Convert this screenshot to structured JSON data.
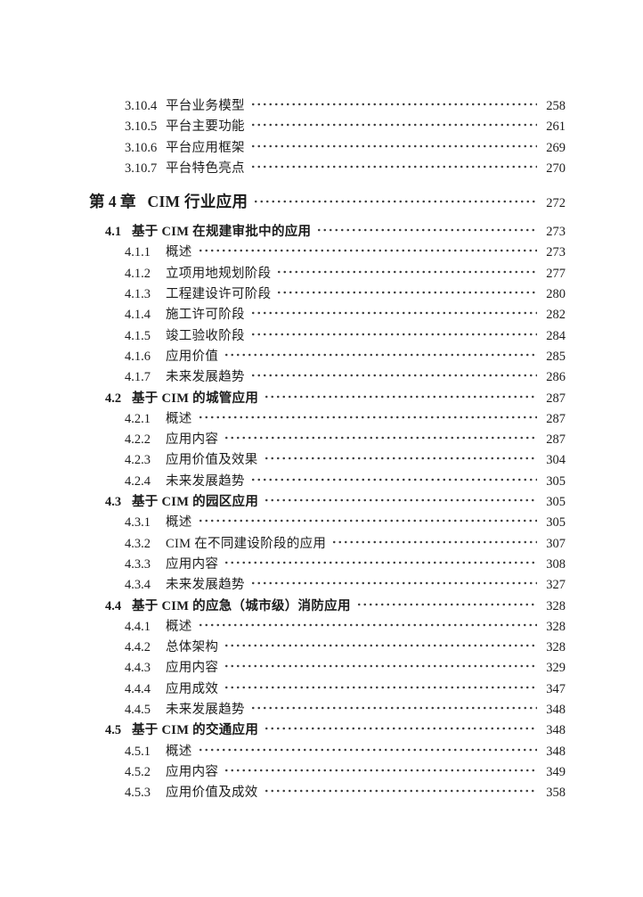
{
  "document": {
    "type": "book-table-of-contents-page",
    "language": "zh-CN"
  },
  "colors": {
    "background": "#ffffff",
    "text": "#1c1c1c",
    "dots": "#3c3c3c"
  },
  "toc": {
    "entries": [
      {
        "level": "sub",
        "number": "3.10.4",
        "title": "平台业务模型",
        "page": "258"
      },
      {
        "level": "sub",
        "number": "3.10.5",
        "title": "平台主要功能",
        "page": "261"
      },
      {
        "level": "sub",
        "number": "3.10.6",
        "title": "平台应用框架",
        "page": "269"
      },
      {
        "level": "sub",
        "number": "3.10.7",
        "title": "平台特色亮点",
        "page": "270"
      },
      {
        "level": "chapter",
        "number": "第 4 章",
        "title": "CIM 行业应用",
        "page": "272"
      },
      {
        "level": "section",
        "number": "4.1",
        "title": "基于 CIM 在规建审批中的应用",
        "page": "273"
      },
      {
        "level": "sub",
        "number": "4.1.1",
        "title": "概述",
        "page": "273"
      },
      {
        "level": "sub",
        "number": "4.1.2",
        "title": "立项用地规划阶段",
        "page": "277"
      },
      {
        "level": "sub",
        "number": "4.1.3",
        "title": "工程建设许可阶段",
        "page": "280"
      },
      {
        "level": "sub",
        "number": "4.1.4",
        "title": "施工许可阶段",
        "page": "282"
      },
      {
        "level": "sub",
        "number": "4.1.5",
        "title": "竣工验收阶段",
        "page": "284"
      },
      {
        "level": "sub",
        "number": "4.1.6",
        "title": "应用价值",
        "page": "285"
      },
      {
        "level": "sub",
        "number": "4.1.7",
        "title": "未来发展趋势",
        "page": "286"
      },
      {
        "level": "section",
        "number": "4.2",
        "title": "基于 CIM 的城管应用",
        "page": "287"
      },
      {
        "level": "sub",
        "number": "4.2.1",
        "title": "概述",
        "page": "287"
      },
      {
        "level": "sub",
        "number": "4.2.2",
        "title": "应用内容",
        "page": "287"
      },
      {
        "level": "sub",
        "number": "4.2.3",
        "title": "应用价值及效果",
        "page": "304"
      },
      {
        "level": "sub",
        "number": "4.2.4",
        "title": "未来发展趋势",
        "page": "305"
      },
      {
        "level": "section",
        "number": "4.3",
        "title": "基于 CIM 的园区应用",
        "page": "305"
      },
      {
        "level": "sub",
        "number": "4.3.1",
        "title": "概述",
        "page": "305"
      },
      {
        "level": "sub",
        "number": "4.3.2",
        "title": "CIM 在不同建设阶段的应用",
        "page": "307"
      },
      {
        "level": "sub",
        "number": "4.3.3",
        "title": "应用内容",
        "page": "308"
      },
      {
        "level": "sub",
        "number": "4.3.4",
        "title": "未来发展趋势",
        "page": "327"
      },
      {
        "level": "section",
        "number": "4.4",
        "title": "基于 CIM 的应急（城市级）消防应用",
        "page": "328"
      },
      {
        "level": "sub",
        "number": "4.4.1",
        "title": "概述",
        "page": "328"
      },
      {
        "level": "sub",
        "number": "4.4.2",
        "title": "总体架构",
        "page": "328"
      },
      {
        "level": "sub",
        "number": "4.4.3",
        "title": "应用内容",
        "page": "329"
      },
      {
        "level": "sub",
        "number": "4.4.4",
        "title": "应用成效",
        "page": "347"
      },
      {
        "level": "sub",
        "number": "4.4.5",
        "title": "未来发展趋势",
        "page": "348"
      },
      {
        "level": "section",
        "number": "4.5",
        "title": "基于 CIM 的交通应用",
        "page": "348"
      },
      {
        "level": "sub",
        "number": "4.5.1",
        "title": "概述",
        "page": "348"
      },
      {
        "level": "sub",
        "number": "4.5.2",
        "title": "应用内容",
        "page": "349"
      },
      {
        "level": "sub",
        "number": "4.5.3",
        "title": "应用价值及成效",
        "page": "358"
      }
    ]
  }
}
